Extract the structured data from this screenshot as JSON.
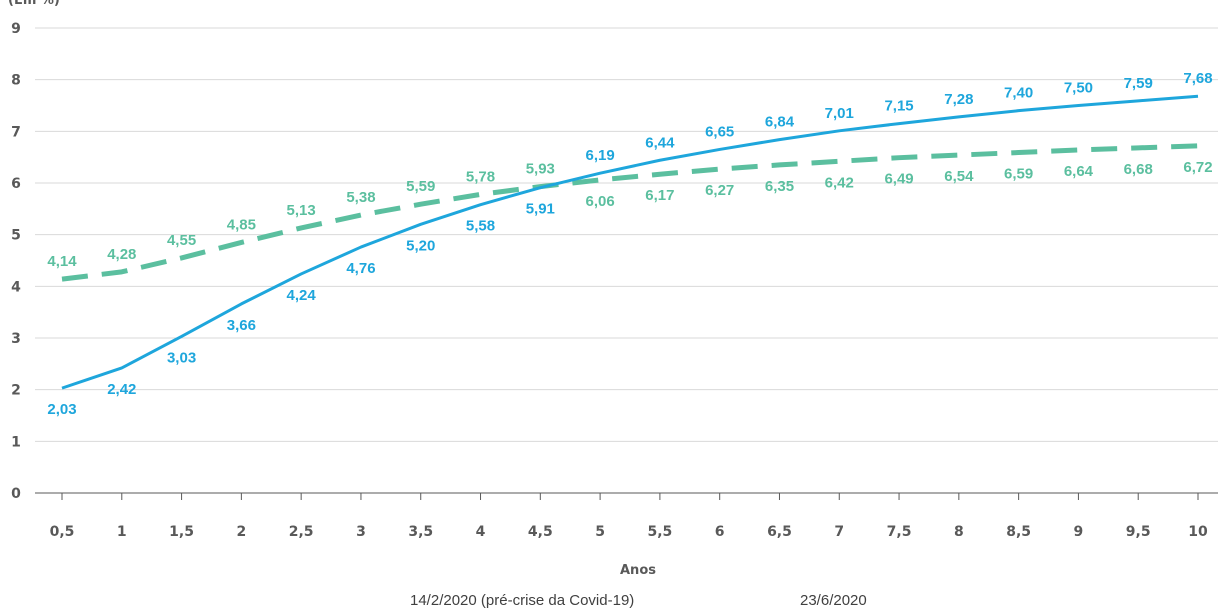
{
  "chart_data": {
    "type": "line",
    "title": "",
    "ylabel": "(Em %)",
    "xlabel": "Anos",
    "ylim": [
      0,
      9
    ],
    "yticks": [
      "0",
      "1",
      "2",
      "3",
      "4",
      "5",
      "6",
      "7",
      "8",
      "9"
    ],
    "x": [
      0.5,
      1,
      1.5,
      2,
      2.5,
      3,
      3.5,
      4,
      4.5,
      5,
      5.5,
      6,
      6.5,
      7,
      7.5,
      8,
      8.5,
      9,
      9.5,
      10
    ],
    "xtick_labels": [
      "0,5",
      "1",
      "1,5",
      "2",
      "2,5",
      "3",
      "3,5",
      "4",
      "4,5",
      "5",
      "5,5",
      "6",
      "6,5",
      "7",
      "7,5",
      "8",
      "8,5",
      "9",
      "9,5",
      "10"
    ],
    "grid": "horizontal",
    "legend_position": "bottom",
    "series": [
      {
        "name": "14/2/2020 (pré-crise da Covid-19)",
        "color": "#5bbf9f",
        "style": "dashed",
        "values": [
          4.14,
          4.28,
          4.55,
          4.85,
          5.13,
          5.38,
          5.59,
          5.78,
          5.93,
          6.06,
          6.17,
          6.27,
          6.35,
          6.42,
          6.49,
          6.54,
          6.59,
          6.64,
          6.68,
          6.72
        ],
        "labels": [
          "4,14",
          "4,28",
          "4,55",
          "4,85",
          "5,13",
          "5,38",
          "5,59",
          "5,78",
          "5,93",
          "6,06",
          "6,17",
          "6,27",
          "6,35",
          "6,42",
          "6,49",
          "6,54",
          "6,59",
          "6,64",
          "6,68",
          "6,72"
        ]
      },
      {
        "name": "23/6/2020",
        "color": "#1ea6dc",
        "style": "solid",
        "values": [
          2.03,
          2.42,
          3.03,
          3.66,
          4.24,
          4.76,
          5.2,
          5.58,
          5.91,
          6.19,
          6.44,
          6.65,
          6.84,
          7.01,
          7.15,
          7.28,
          7.4,
          7.5,
          7.59,
          7.68
        ],
        "labels": [
          "2,03",
          "2,42",
          "3,03",
          "3,66",
          "4,24",
          "4,76",
          "5,20",
          "5,58",
          "5,91",
          "6,19",
          "6,44",
          "6,65",
          "6,84",
          "7,01",
          "7,15",
          "7,28",
          "7,40",
          "7,50",
          "7,59",
          "7,68"
        ]
      }
    ]
  }
}
